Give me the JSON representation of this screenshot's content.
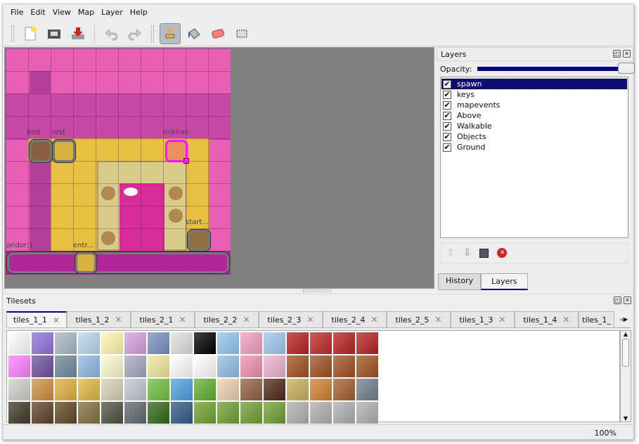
{
  "menu": [
    "File",
    "Edit",
    "View",
    "Map",
    "Layer",
    "Help"
  ],
  "toolbar": [
    "new-icon",
    "open-icon",
    "save-icon",
    "undo-icon",
    "redo-icon",
    "stamp-brush-icon",
    "bucket-fill-icon",
    "eraser-icon",
    "rect-select-icon"
  ],
  "map": {
    "objects": [
      {
        "label": "bed"
      },
      {
        "label": "rest"
      },
      {
        "label": "mikhail"
      },
      {
        "label": "start..."
      },
      {
        "label": "andor:1"
      },
      {
        "label": "entr..."
      }
    ]
  },
  "layers": {
    "title": "Layers",
    "opacity_label": "Opacity:",
    "opacity": 1.0,
    "items": [
      "spawn",
      "keys",
      "mapevents",
      "Above",
      "Walkable",
      "Objects",
      "Ground"
    ],
    "selected": "spawn",
    "tabs": [
      "History",
      "Layers"
    ]
  },
  "tilesets": {
    "title": "Tilesets",
    "tabs": [
      "tiles_1_1",
      "tiles_1_2",
      "tiles_2_1",
      "tiles_2_2",
      "tiles_2_3",
      "tiles_2_4",
      "tiles_2_5",
      "tiles_1_3",
      "tiles_1_4",
      "tiles_1_"
    ],
    "tile_colors": [
      "#ffffff",
      "#9070e0",
      "#a8b8c8",
      "#b8d8f0",
      "#fff8b0",
      "#d8a0e0",
      "#7890c0",
      "#e0e0e0",
      "#000000",
      "#90c8f0",
      "#f0a0c0",
      "#a0c8f0",
      "#b82020",
      "#c02828",
      "#b82020",
      "#b82020",
      "#ff80ff",
      "#7050a0",
      "#708898",
      "#90b8e0",
      "#fffad0",
      "#a8a8c0",
      "#f0e8a0",
      "#ffffff",
      "#ffffff",
      "#90c0e8",
      "#f090b0",
      "#f0b0d0",
      "#a05020",
      "#a05020",
      "#a05020",
      "#a05020",
      "#d0d0c8",
      "#d09040",
      "#e0b040",
      "#e0b840",
      "#d8d0b8",
      "#c0c8d0",
      "#70c040",
      "#50a0e0",
      "#60b030",
      "#f0d0b0",
      "#906040",
      "#502818",
      "#c8b060",
      "#d08030",
      "#a06030",
      "#708088",
      "#403828",
      "#604028",
      "#604820",
      "#807040",
      "#505040",
      "#606870",
      "#306818",
      "#305888",
      "#70a030",
      "#70a030",
      "#70a030",
      "#70a030",
      "#b0b0b0",
      "#b0b0b0",
      "#b0b0b0",
      "#b0b0b0"
    ]
  },
  "status": {
    "zoom": "100%"
  }
}
